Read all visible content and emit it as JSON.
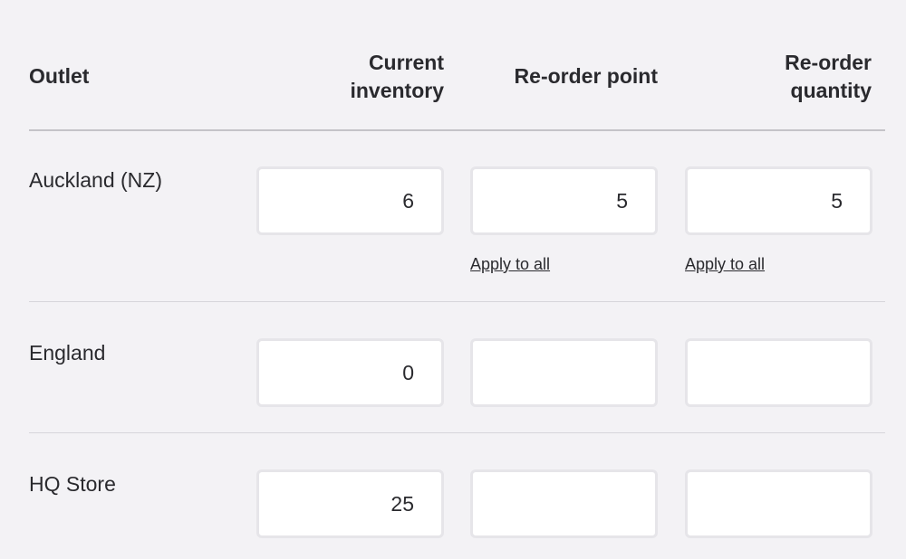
{
  "headers": {
    "outlet": "Outlet",
    "current_inventory_1": "Current",
    "current_inventory_2": "inventory",
    "reorder_point": "Re-order point",
    "reorder_quantity_1": "Re-order",
    "reorder_quantity_2": "quantity"
  },
  "rows": [
    {
      "outlet": "Auckland (NZ)",
      "current_inventory": "6",
      "reorder_point": "5",
      "reorder_quantity": "5"
    },
    {
      "outlet": "England",
      "current_inventory": "0",
      "reorder_point": "",
      "reorder_quantity": ""
    },
    {
      "outlet": "HQ Store",
      "current_inventory": "25",
      "reorder_point": "",
      "reorder_quantity": ""
    }
  ],
  "apply_to_all": "Apply to all"
}
